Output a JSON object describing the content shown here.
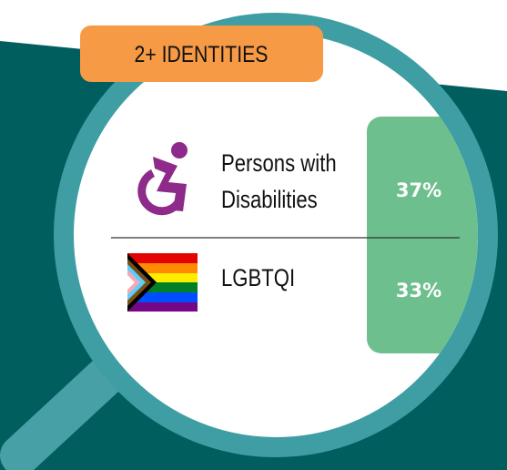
{
  "header": {
    "title": "2+ IDENTITIES"
  },
  "rows": [
    {
      "label_lines": [
        "Persons with",
        "Disabilities"
      ],
      "value": "37%"
    },
    {
      "label_lines": [
        "LGBTQI"
      ],
      "value": "33%"
    }
  ]
}
